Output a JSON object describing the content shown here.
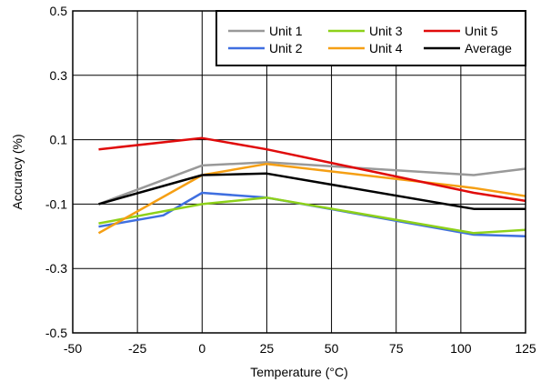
{
  "chart_data": {
    "type": "line",
    "xlabel": "Temperature (°C)",
    "ylabel": "Accuracy (%)",
    "xlim": [
      -50,
      125
    ],
    "ylim": [
      -0.5,
      0.5
    ],
    "x_ticks": [
      -50,
      -25,
      0,
      25,
      50,
      75,
      100,
      125
    ],
    "x_tick_labels": [
      "-50",
      "-25",
      "0",
      "25",
      "50",
      "75",
      "100",
      "125"
    ],
    "y_ticks": [
      -0.5,
      -0.3,
      -0.1,
      0.1,
      0.3,
      0.5
    ],
    "y_tick_labels": [
      "-0.5",
      "-0.3",
      "-0.1",
      "0.1",
      "0.3",
      "0.5"
    ],
    "grid": true,
    "legend_position": "top-right",
    "series": [
      {
        "name": "Unit 1",
        "color": "#999999",
        "x": [
          -40,
          0,
          25,
          105,
          125
        ],
        "y": [
          -0.1,
          0.02,
          0.03,
          -0.01,
          0.01
        ]
      },
      {
        "name": "Unit 2",
        "color": "#3f6fe0",
        "x": [
          -40,
          -15,
          0,
          25,
          105,
          125
        ],
        "y": [
          -0.17,
          -0.135,
          -0.065,
          -0.08,
          -0.195,
          -0.2
        ]
      },
      {
        "name": "Unit 3",
        "color": "#8ed11a",
        "x": [
          -40,
          0,
          25,
          105,
          125
        ],
        "y": [
          -0.16,
          -0.1,
          -0.08,
          -0.19,
          -0.18
        ]
      },
      {
        "name": "Unit 4",
        "color": "#f59f14",
        "x": [
          -40,
          0,
          25,
          105,
          125
        ],
        "y": [
          -0.19,
          -0.01,
          0.025,
          -0.05,
          -0.075
        ]
      },
      {
        "name": "Unit 5",
        "color": "#e00b0b",
        "x": [
          -40,
          0,
          25,
          105,
          125
        ],
        "y": [
          0.07,
          0.105,
          0.07,
          -0.065,
          -0.09
        ]
      },
      {
        "name": "Average",
        "color": "#000000",
        "x": [
          -40,
          0,
          25,
          105,
          125
        ],
        "y": [
          -0.1,
          -0.01,
          -0.005,
          -0.115,
          -0.115
        ]
      }
    ]
  }
}
